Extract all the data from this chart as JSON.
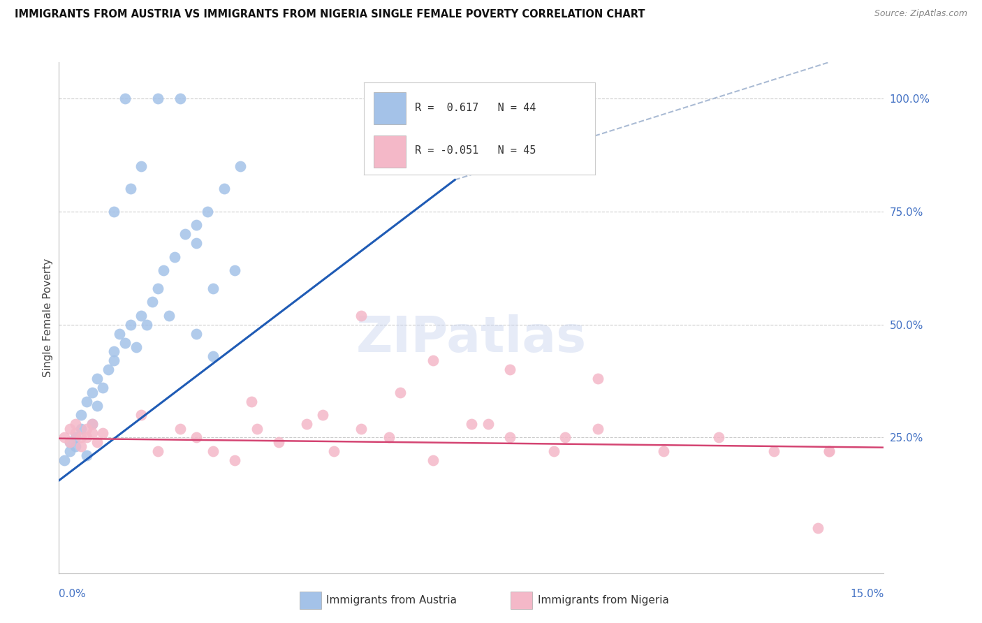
{
  "title": "IMMIGRANTS FROM AUSTRIA VS IMMIGRANTS FROM NIGERIA SINGLE FEMALE POVERTY CORRELATION CHART",
  "source": "Source: ZipAtlas.com",
  "ylabel": "Single Female Poverty",
  "right_yticks": [
    "100.0%",
    "75.0%",
    "50.0%",
    "25.0%"
  ],
  "right_ytick_vals": [
    1.0,
    0.75,
    0.5,
    0.25
  ],
  "austria_color": "#a4c2e8",
  "nigeria_color": "#f4b8c8",
  "austria_line_color": "#1f5bb5",
  "nigeria_line_color": "#d44472",
  "dashed_color": "#aabbd4",
  "background_color": "#ffffff",
  "grid_color": "#cccccc",
  "tick_label_color": "#4472c4",
  "xlim": [
    0.0,
    0.15
  ],
  "ylim": [
    -0.05,
    1.08
  ],
  "austria_line_x": [
    0.0,
    0.072
  ],
  "austria_line_y": [
    0.155,
    0.82
  ],
  "dashed_line_x": [
    0.072,
    0.14
  ],
  "dashed_line_y": [
    0.82,
    1.5
  ],
  "nigeria_line_x": [
    0.0,
    0.15
  ],
  "nigeria_line_y": [
    0.248,
    0.228
  ],
  "austria_x": [
    0.001,
    0.002,
    0.002,
    0.003,
    0.003,
    0.004,
    0.004,
    0.005,
    0.005,
    0.006,
    0.006,
    0.007,
    0.007,
    0.008,
    0.009,
    0.01,
    0.01,
    0.011,
    0.012,
    0.013,
    0.014,
    0.015,
    0.016,
    0.017,
    0.018,
    0.019,
    0.021,
    0.023,
    0.025,
    0.027,
    0.03,
    0.033,
    0.012,
    0.018,
    0.022,
    0.025,
    0.028,
    0.032,
    0.01,
    0.013,
    0.015,
    0.02,
    0.025,
    0.028
  ],
  "austria_y": [
    0.2,
    0.24,
    0.22,
    0.25,
    0.23,
    0.27,
    0.3,
    0.21,
    0.33,
    0.28,
    0.35,
    0.32,
    0.38,
    0.36,
    0.4,
    0.44,
    0.42,
    0.48,
    0.46,
    0.5,
    0.45,
    0.52,
    0.5,
    0.55,
    0.58,
    0.62,
    0.65,
    0.7,
    0.72,
    0.75,
    0.8,
    0.85,
    1.0,
    1.0,
    1.0,
    0.68,
    0.58,
    0.62,
    0.75,
    0.8,
    0.85,
    0.52,
    0.48,
    0.43
  ],
  "nigeria_x": [
    0.001,
    0.002,
    0.002,
    0.003,
    0.003,
    0.004,
    0.004,
    0.005,
    0.005,
    0.006,
    0.006,
    0.007,
    0.008,
    0.015,
    0.018,
    0.022,
    0.025,
    0.028,
    0.032,
    0.036,
    0.04,
    0.045,
    0.05,
    0.055,
    0.06,
    0.068,
    0.075,
    0.082,
    0.09,
    0.098,
    0.055,
    0.068,
    0.082,
    0.098,
    0.11,
    0.12,
    0.13,
    0.14,
    0.035,
    0.048,
    0.062,
    0.078,
    0.092,
    0.138,
    0.14
  ],
  "nigeria_y": [
    0.25,
    0.27,
    0.24,
    0.26,
    0.28,
    0.25,
    0.23,
    0.27,
    0.25,
    0.26,
    0.28,
    0.24,
    0.26,
    0.3,
    0.22,
    0.27,
    0.25,
    0.22,
    0.2,
    0.27,
    0.24,
    0.28,
    0.22,
    0.27,
    0.25,
    0.2,
    0.28,
    0.25,
    0.22,
    0.27,
    0.52,
    0.42,
    0.4,
    0.38,
    0.22,
    0.25,
    0.22,
    0.22,
    0.33,
    0.3,
    0.35,
    0.28,
    0.25,
    0.05,
    0.22
  ]
}
